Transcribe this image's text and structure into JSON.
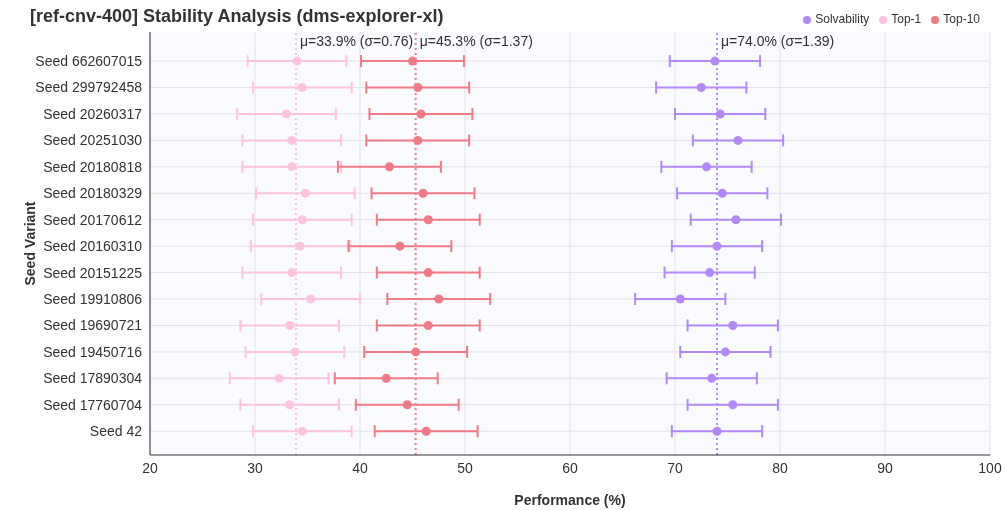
{
  "chart_data": {
    "type": "scatter",
    "orientation": "horizontal",
    "title": "[ref-cnv-400] Stability Analysis (dms-explorer-xl)",
    "xlabel": "Performance (%)",
    "ylabel": "Seed Variant",
    "categories": [
      "Seed 662607015",
      "Seed 299792458",
      "Seed 20260317",
      "Seed 20251030",
      "Seed 20180818",
      "Seed 20180329",
      "Seed 20170612",
      "Seed 20160310",
      "Seed 20151225",
      "Seed 19910806",
      "Seed 19690721",
      "Seed 19450716",
      "Seed 17890304",
      "Seed 17760704",
      "Seed 42"
    ],
    "series": [
      {
        "name": "Solvability",
        "color": "#b388f7",
        "values": [
          73.8,
          72.5,
          74.3,
          76.0,
          73.0,
          74.5,
          75.8,
          74.0,
          73.3,
          70.5,
          75.5,
          74.8,
          73.5,
          75.5,
          74.0
        ],
        "errors": [
          4.3,
          4.3,
          4.3,
          4.3,
          4.3,
          4.3,
          4.3,
          4.3,
          4.3,
          4.3,
          4.3,
          4.3,
          4.3,
          4.3,
          4.3
        ]
      },
      {
        "name": "Top-1",
        "color": "#ffc2e0",
        "values": [
          34.0,
          34.5,
          33.0,
          33.5,
          33.5,
          34.8,
          34.5,
          34.3,
          33.5,
          35.3,
          33.3,
          33.8,
          32.3,
          33.3,
          34.5
        ],
        "errors": [
          4.7,
          4.7,
          4.7,
          4.7,
          4.7,
          4.7,
          4.7,
          4.7,
          4.7,
          4.7,
          4.7,
          4.7,
          4.7,
          4.7,
          4.7
        ]
      },
      {
        "name": "Top-10",
        "color": "#f07a86",
        "values": [
          45.0,
          45.5,
          45.8,
          45.5,
          42.8,
          46.0,
          46.5,
          43.8,
          46.5,
          47.5,
          46.5,
          45.3,
          42.5,
          44.5,
          46.3
        ],
        "errors": [
          4.9,
          4.9,
          4.9,
          4.9,
          4.9,
          4.9,
          4.9,
          4.9,
          4.9,
          4.9,
          4.9,
          4.9,
          4.9,
          4.9,
          4.9
        ]
      }
    ],
    "xlim": [
      20,
      100
    ],
    "xticks": [
      20,
      30,
      40,
      50,
      60,
      70,
      80,
      90,
      100
    ],
    "ref_lines": [
      {
        "axis": "x",
        "value": 33.9,
        "label": "μ=33.9% (σ=0.76)",
        "color": "#ffc2e0",
        "line_style": "dotted"
      },
      {
        "axis": "x",
        "value": 45.3,
        "label": "μ=45.3% (σ=1.37)",
        "color": "#f07a86",
        "line_style": "dotted"
      },
      {
        "axis": "x",
        "value": 74.0,
        "label": "μ=74.0% (σ=1.39)",
        "color": "#b388f7",
        "line_style": "dotted"
      }
    ],
    "grid": true,
    "legend": "top right",
    "marker": "circle"
  }
}
